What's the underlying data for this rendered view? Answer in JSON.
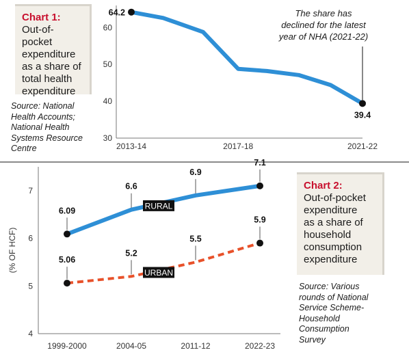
{
  "chart_data": [
    {
      "type": "line",
      "title": "Chart 1:",
      "subtitle": "Out-of-pocket expenditure as a share of total health expenditure",
      "subtitle_lines": [
        "Out-of-pocket",
        "expenditure",
        "as a share of",
        "total health",
        "expenditure"
      ],
      "source_lines": [
        "Source: National",
        "Health Accounts;",
        "National Health",
        "Systems Resource",
        "Centre"
      ],
      "x": [
        2013.75,
        2014.75,
        2016,
        2017.1,
        2018,
        2019,
        2020,
        2021
      ],
      "x_tick_labels": [
        "2013-14",
        "2017-18",
        "2021-22"
      ],
      "values": [
        64.2,
        62.6,
        58.8,
        48.8,
        48.2,
        47.1,
        44.4,
        39.4
      ],
      "yticks": [
        30,
        40,
        50,
        60
      ],
      "ylim": [
        30,
        66
      ],
      "point_labels": [
        {
          "index": 0,
          "text": "64.2"
        },
        {
          "index": 7,
          "text": "39.4"
        }
      ],
      "annotation_lines": [
        "The share has",
        "declined for the latest",
        "year of NHA (2021-22)"
      ],
      "color": "#2e8fd6",
      "grid": false
    },
    {
      "type": "line",
      "title": "Chart 2:",
      "subtitle": "Out-of-pocket expenditure as a share of household consumption expenditure",
      "subtitle_lines": [
        "Out-of-pocket",
        "expenditure",
        "as a share of",
        "household",
        "consumption",
        "expenditure"
      ],
      "source_lines": [
        "Source: Various",
        "rounds of National",
        "Service Scheme-",
        "Household",
        "Consumption",
        "Survey"
      ],
      "categories": [
        "1999-2000",
        "2004-05",
        "2011-12",
        "2022-23"
      ],
      "ylabel": "(% OF HCF)",
      "yticks": [
        4,
        5,
        6,
        7
      ],
      "ylim": [
        4,
        7.5
      ],
      "series": [
        {
          "name": "RURAL",
          "values": [
            6.09,
            6.6,
            6.9,
            7.1
          ],
          "labels": [
            "6.09",
            "6.6",
            "6.9",
            "7.1"
          ],
          "color": "#2e8fd6",
          "style": "solid"
        },
        {
          "name": "URBAN",
          "values": [
            5.06,
            5.2,
            5.5,
            5.9
          ],
          "labels": [
            "5.06",
            "5.2",
            "5.5",
            "5.9"
          ],
          "color": "#e8512a",
          "style": "dashed"
        }
      ],
      "grid": false
    }
  ]
}
